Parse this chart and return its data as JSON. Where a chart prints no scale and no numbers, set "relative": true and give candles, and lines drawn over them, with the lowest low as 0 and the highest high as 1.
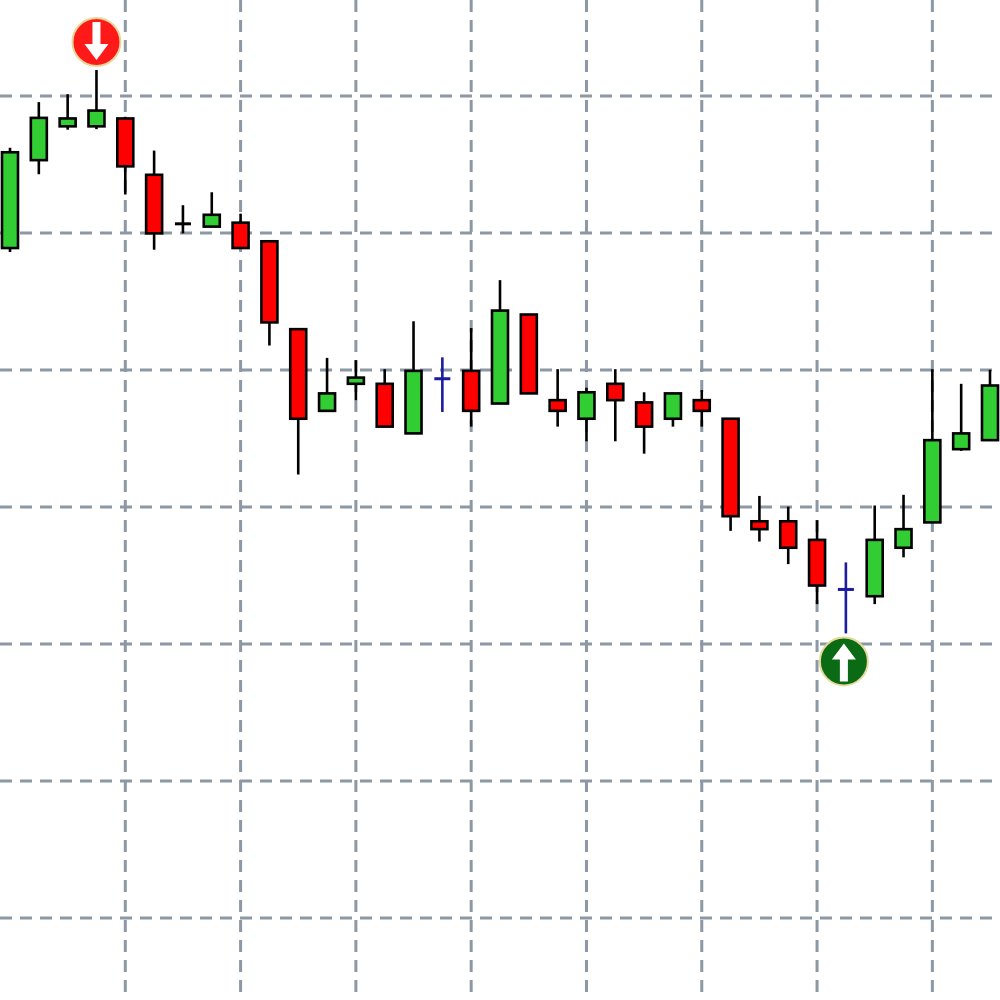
{
  "chart_data": {
    "type": "candlestick",
    "relative": true,
    "grid": true,
    "categories": [
      null,
      null,
      null,
      null,
      null,
      null,
      null,
      null,
      null,
      null,
      null,
      null,
      null,
      null,
      null,
      null,
      null,
      null,
      null,
      null,
      null,
      null,
      null,
      null,
      null,
      null,
      null,
      null,
      null,
      null,
      null,
      null,
      null,
      null,
      null
    ],
    "ohlc": [
      [
        0.684,
        0.862,
        0.677,
        0.854
      ],
      [
        0.84,
        0.943,
        0.815,
        0.915
      ],
      [
        0.9,
        0.957,
        0.894,
        0.914
      ],
      [
        0.9,
        1.0,
        0.895,
        0.928
      ],
      [
        0.914,
        0.917,
        0.779,
        0.829
      ],
      [
        0.814,
        0.857,
        0.681,
        0.71
      ],
      [
        0.727,
        0.76,
        0.71,
        0.727
      ],
      [
        0.722,
        0.783,
        0.722,
        0.743
      ],
      [
        0.729,
        0.745,
        0.684,
        0.684
      ],
      [
        0.696,
        0.696,
        0.511,
        0.552
      ],
      [
        0.54,
        0.54,
        0.282,
        0.381
      ],
      [
        0.395,
        0.489,
        0.395,
        0.426
      ],
      [
        0.443,
        0.485,
        0.414,
        0.454
      ],
      [
        0.443,
        0.469,
        0.367,
        0.367
      ],
      [
        0.355,
        0.554,
        0.355,
        0.466
      ],
      [
        0.452,
        0.49,
        0.393,
        0.452
      ],
      [
        0.466,
        0.542,
        0.367,
        0.395
      ],
      [
        0.408,
        0.627,
        0.408,
        0.573
      ],
      [
        0.566,
        0.566,
        0.426,
        0.426
      ],
      [
        0.414,
        0.469,
        0.367,
        0.395
      ],
      [
        0.381,
        0.436,
        0.341,
        0.428
      ],
      [
        0.443,
        0.469,
        0.341,
        0.414
      ],
      [
        0.41,
        0.428,
        0.319,
        0.367
      ],
      [
        0.381,
        0.426,
        0.367,
        0.426
      ],
      [
        0.414,
        0.432,
        0.367,
        0.395
      ],
      [
        0.381,
        0.381,
        0.182,
        0.208
      ],
      [
        0.199,
        0.244,
        0.163,
        0.185
      ],
      [
        0.199,
        0.225,
        0.123,
        0.152
      ],
      [
        0.166,
        0.201,
        0.052,
        0.085
      ],
      [
        0.078,
        0.126,
        0.0,
        0.078
      ],
      [
        0.066,
        0.227,
        0.052,
        0.166
      ],
      [
        0.152,
        0.246,
        0.135,
        0.185
      ],
      [
        0.197,
        0.469,
        0.197,
        0.343
      ],
      [
        0.327,
        0.443,
        0.324,
        0.355
      ],
      [
        0.343,
        0.468,
        0.343,
        0.44
      ]
    ],
    "colors": [
      "#32cd32",
      "#32cd32",
      "#32cd32",
      "#32cd32",
      "#ff0000",
      "#ff0000",
      "#000000",
      "#32cd32",
      "#ff0000",
      "#ff0000",
      "#ff0000",
      "#32cd32",
      "#32cd32",
      "#ff0000",
      "#32cd32",
      "#1c1ca0",
      "#ff0000",
      "#32cd32",
      "#ff0000",
      "#ff0000",
      "#32cd32",
      "#ff0000",
      "#ff0000",
      "#32cd32",
      "#ff0000",
      "#ff0000",
      "#ff0000",
      "#ff0000",
      "#ff0000",
      "#1c1ca0",
      "#32cd32",
      "#32cd32",
      "#32cd32",
      "#32cd32",
      "#32cd32"
    ]
  }
}
